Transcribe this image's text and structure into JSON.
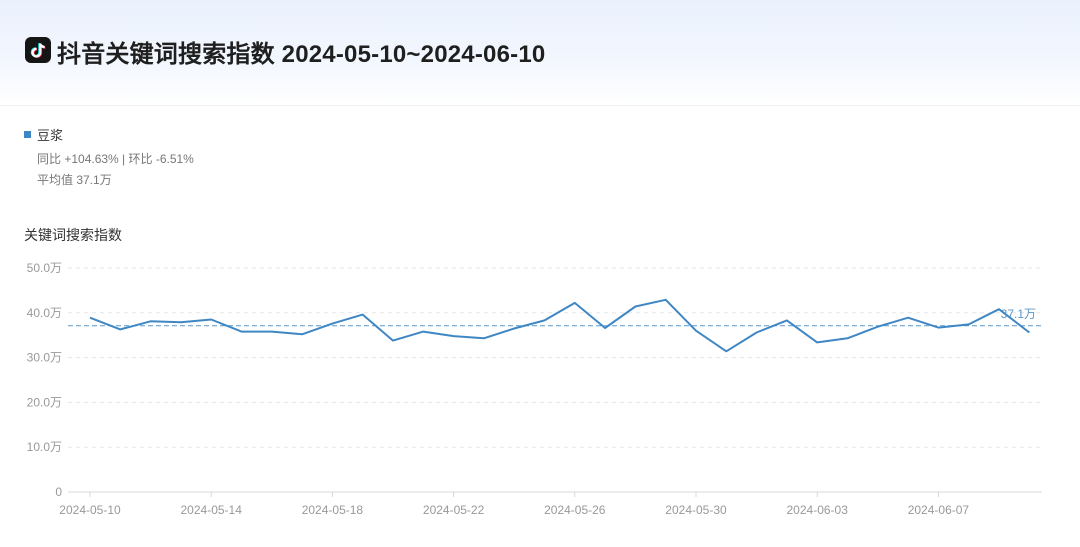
{
  "header": {
    "title": "抖音关键词搜索指数 2024-05-10~2024-06-10",
    "logo_icon": "tiktok-icon"
  },
  "legend": {
    "series_name": "豆浆",
    "color": "#3f87c4"
  },
  "stats": {
    "yoy_mom": "同比 +104.63% | 环比 -6.51%",
    "average": "平均值 37.1万"
  },
  "chart_title": "关键词搜索指数",
  "chart_data": {
    "type": "line",
    "ylabel": "关键词搜索指数",
    "ylim": [
      0,
      50
    ],
    "yticks": [
      0,
      10,
      20,
      30,
      40,
      50
    ],
    "ytick_labels": [
      "0",
      "10.0万",
      "20.0万",
      "30.0万",
      "40.0万",
      "50.0万"
    ],
    "x": [
      "2024-05-10",
      "2024-05-11",
      "2024-05-12",
      "2024-05-13",
      "2024-05-14",
      "2024-05-15",
      "2024-05-16",
      "2024-05-17",
      "2024-05-18",
      "2024-05-19",
      "2024-05-20",
      "2024-05-21",
      "2024-05-22",
      "2024-05-23",
      "2024-05-24",
      "2024-05-25",
      "2024-05-26",
      "2024-05-27",
      "2024-05-28",
      "2024-05-29",
      "2024-05-30",
      "2024-05-31",
      "2024-06-01",
      "2024-06-02",
      "2024-06-03",
      "2024-06-04",
      "2024-06-05",
      "2024-06-06",
      "2024-06-07",
      "2024-06-08",
      "2024-06-09",
      "2024-06-10"
    ],
    "xtick_labels": [
      "2024-05-10",
      "2024-05-14",
      "2024-05-18",
      "2024-05-22",
      "2024-05-26",
      "2024-05-30",
      "2024-06-03",
      "2024-06-07"
    ],
    "series": [
      {
        "name": "豆浆",
        "color": "#3f87c4",
        "values": [
          38.9,
          36.3,
          38.1,
          37.9,
          38.5,
          35.8,
          35.8,
          35.2,
          37.6,
          39.6,
          33.8,
          35.8,
          34.8,
          34.3,
          36.5,
          38.3,
          42.2,
          36.6,
          41.4,
          42.9,
          36.0,
          31.4,
          35.6,
          38.3,
          33.4,
          34.3,
          36.9,
          38.9,
          36.7,
          37.4,
          40.8,
          35.6
        ]
      }
    ],
    "average": 37.1,
    "average_label": "37.1万",
    "grid": true,
    "legend_position": "top-left"
  }
}
